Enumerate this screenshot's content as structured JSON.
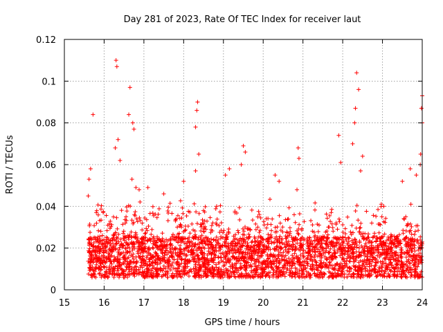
{
  "chart_data": {
    "type": "scatter",
    "title": "Day 281 of 2023, Rate Of TEC Index for receiver laut",
    "xlabel": "GPS time / hours",
    "ylabel": "ROTI / TECUs",
    "xlim": [
      15,
      24
    ],
    "ylim": [
      0,
      0.12
    ],
    "x_ticks": [
      "15",
      "16",
      "17",
      "18",
      "19",
      "20",
      "21",
      "22",
      "23",
      "24"
    ],
    "y_ticks": [
      "0",
      "0.02",
      "0.04",
      "0.06",
      "0.08",
      "0.1",
      "0.12"
    ],
    "grid": true,
    "marker": "+",
    "color": "#ff0000",
    "x_start": 15.6,
    "x_end": 24.0,
    "baseline_median": 0.017,
    "series": [
      {
        "points": [
          [
            15.72,
            0.084
          ],
          [
            15.62,
            0.053
          ],
          [
            15.66,
            0.058
          ],
          [
            15.6,
            0.045
          ],
          [
            16.3,
            0.11
          ],
          [
            16.32,
            0.107
          ],
          [
            16.28,
            0.068
          ],
          [
            16.35,
            0.072
          ],
          [
            16.4,
            0.062
          ],
          [
            16.65,
            0.097
          ],
          [
            16.62,
            0.084
          ],
          [
            16.72,
            0.08
          ],
          [
            16.75,
            0.077
          ],
          [
            16.7,
            0.053
          ],
          [
            16.8,
            0.049
          ],
          [
            16.88,
            0.048
          ],
          [
            17.1,
            0.049
          ],
          [
            17.5,
            0.046
          ],
          [
            18.0,
            0.052
          ],
          [
            18.3,
            0.078
          ],
          [
            18.35,
            0.09
          ],
          [
            18.33,
            0.086
          ],
          [
            18.38,
            0.065
          ],
          [
            18.3,
            0.057
          ],
          [
            19.15,
            0.058
          ],
          [
            19.05,
            0.055
          ],
          [
            19.5,
            0.069
          ],
          [
            19.55,
            0.066
          ],
          [
            19.45,
            0.06
          ],
          [
            20.3,
            0.055
          ],
          [
            20.4,
            0.052
          ],
          [
            20.88,
            0.068
          ],
          [
            20.9,
            0.063
          ],
          [
            20.85,
            0.048
          ],
          [
            21.9,
            0.074
          ],
          [
            21.95,
            0.061
          ],
          [
            22.3,
            0.08
          ],
          [
            22.35,
            0.104
          ],
          [
            22.4,
            0.096
          ],
          [
            22.32,
            0.087
          ],
          [
            22.25,
            0.07
          ],
          [
            22.5,
            0.064
          ],
          [
            22.45,
            0.057
          ],
          [
            23.5,
            0.052
          ],
          [
            23.7,
            0.058
          ],
          [
            23.85,
            0.055
          ],
          [
            24.0,
            0.093
          ],
          [
            23.98,
            0.087
          ],
          [
            24.0,
            0.08
          ],
          [
            23.96,
            0.065
          ],
          [
            23.95,
            0.06
          ]
        ]
      }
    ]
  }
}
